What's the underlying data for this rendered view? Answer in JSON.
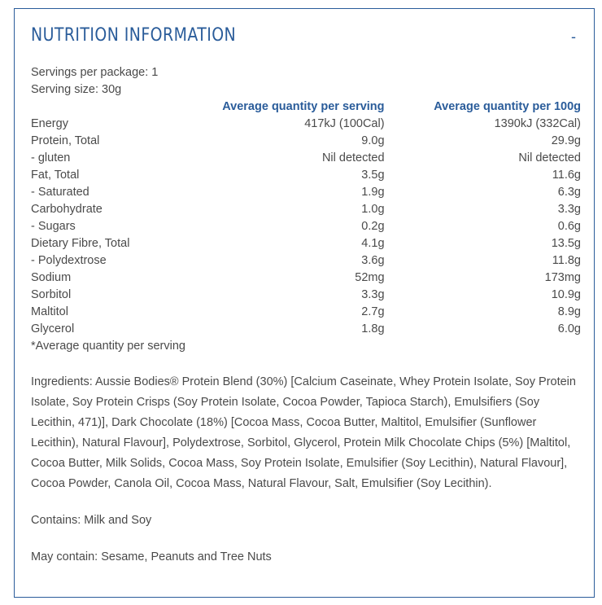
{
  "header": {
    "title": "NUTRITION INFORMATION",
    "toggle_label": "-"
  },
  "servings": {
    "per_package": "Servings per package: 1",
    "size": "Serving size: 30g"
  },
  "table": {
    "col_serving": "Average quantity per serving",
    "col_100g": "Average quantity per 100g",
    "rows": [
      {
        "name": "Energy",
        "serving": "417kJ (100Cal)",
        "per100": "1390kJ (332Cal)"
      },
      {
        "name": "Protein, Total",
        "serving": "9.0g",
        "per100": "29.9g"
      },
      {
        "name": "- gluten",
        "serving": "Nil detected",
        "per100": "Nil detected"
      },
      {
        "name": "Fat, Total",
        "serving": "3.5g",
        "per100": "11.6g"
      },
      {
        "name": "- Saturated",
        "serving": "1.9g",
        "per100": "6.3g"
      },
      {
        "name": "Carbohydrate",
        "serving": "1.0g",
        "per100": "3.3g"
      },
      {
        "name": "- Sugars",
        "serving": "0.2g",
        "per100": "0.6g"
      },
      {
        "name": "Dietary Fibre, Total",
        "serving": "4.1g",
        "per100": "13.5g"
      },
      {
        "name": "- Polydextrose",
        "serving": "3.6g",
        "per100": "11.8g"
      },
      {
        "name": "Sodium",
        "serving": "52mg",
        "per100": "173mg"
      },
      {
        "name": "Sorbitol",
        "serving": "3.3g",
        "per100": "10.9g"
      },
      {
        "name": "Maltitol",
        "serving": "2.7g",
        "per100": "8.9g"
      },
      {
        "name": "Glycerol",
        "serving": "1.8g",
        "per100": "6.0g"
      }
    ],
    "footnote": "*Average quantity per serving"
  },
  "ingredients": "Ingredients: Aussie Bodies® Protein Blend (30%) [Calcium Caseinate, Whey Protein Isolate, Soy Protein Isolate, Soy Protein Crisps (Soy Protein Isolate, Cocoa Powder, Tapioca Starch), Emulsifiers (Soy Lecithin, 471)], Dark Chocolate (18%) [Cocoa Mass, Cocoa Butter, Maltitol, Emulsifier (Sunflower Lecithin), Natural Flavour], Polydextrose, Sorbitol, Glycerol, Protein Milk Chocolate Chips (5%) [Maltitol, Cocoa Butter, Milk Solids, Cocoa Mass, Soy Protein Isolate, Emulsifier (Soy Lecithin), Natural Flavour], Cocoa Powder, Canola Oil, Cocoa Mass, Natural Flavour, Salt, Emulsifier (Soy Lecithin).",
  "contains": "Contains: Milk and Soy",
  "may_contain": "May contain: Sesame, Peanuts and Tree Nuts",
  "colors": {
    "accent": "#2a5c9a",
    "text": "#4a4a4a"
  }
}
